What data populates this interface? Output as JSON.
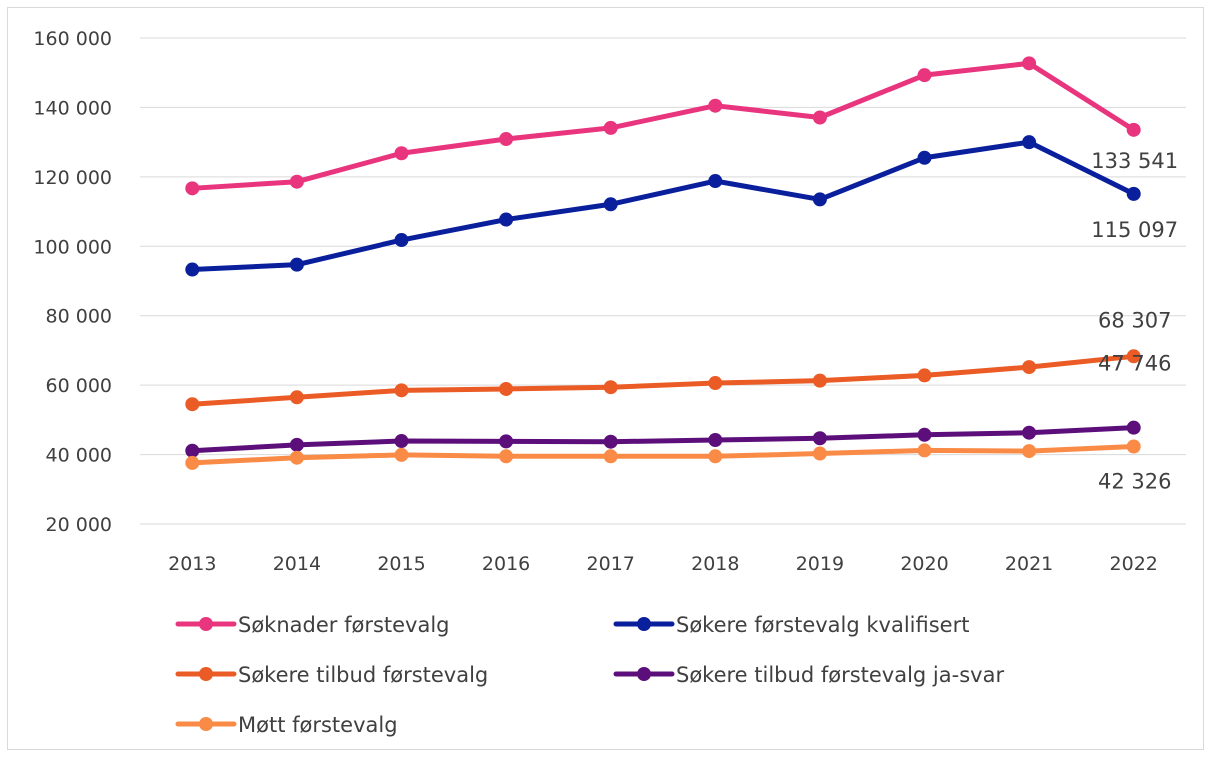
{
  "chart_data": {
    "type": "line",
    "categories": [
      "2013",
      "2014",
      "2015",
      "2016",
      "2017",
      "2018",
      "2019",
      "2020",
      "2021",
      "2022"
    ],
    "ylim": [
      20000,
      160000
    ],
    "yticks": [
      20000,
      40000,
      60000,
      80000,
      100000,
      120000,
      140000,
      160000
    ],
    "ytick_labels": [
      "20 000",
      "40 000",
      "60 000",
      "80 000",
      "100 000",
      "120 000",
      "140 000",
      "160 000"
    ],
    "grid": true,
    "legend_position": "bottom",
    "series": [
      {
        "name": "Søknader førstevalg",
        "color": "#e8357e",
        "values": [
          116700,
          118600,
          126800,
          130900,
          134100,
          140500,
          137100,
          149300,
          152700,
          133541
        ],
        "last_label": "133 541"
      },
      {
        "name": "Søkere førstevalg kvalifisert",
        "color": "#0a1f9c",
        "values": [
          93300,
          94700,
          101800,
          107700,
          112100,
          118800,
          113500,
          125500,
          130000,
          115097
        ],
        "last_label": "115 097"
      },
      {
        "name": "Søkere tilbud førstevalg",
        "color": "#ea5b25",
        "values": [
          54500,
          56500,
          58500,
          58900,
          59400,
          60600,
          61300,
          62800,
          65200,
          68307
        ],
        "last_label": "68 307"
      },
      {
        "name": "Søkere tilbud førstevalg ja-svar",
        "color": "#5c0f7a",
        "values": [
          41100,
          42800,
          43900,
          43800,
          43700,
          44200,
          44700,
          45700,
          46300,
          47746
        ],
        "last_label": "47 746"
      },
      {
        "name": "Møtt førstevalg",
        "color": "#f98b46",
        "values": [
          37600,
          39100,
          39900,
          39500,
          39500,
          39500,
          40300,
          41200,
          41000,
          42326
        ],
        "last_label": "42 326"
      }
    ]
  }
}
